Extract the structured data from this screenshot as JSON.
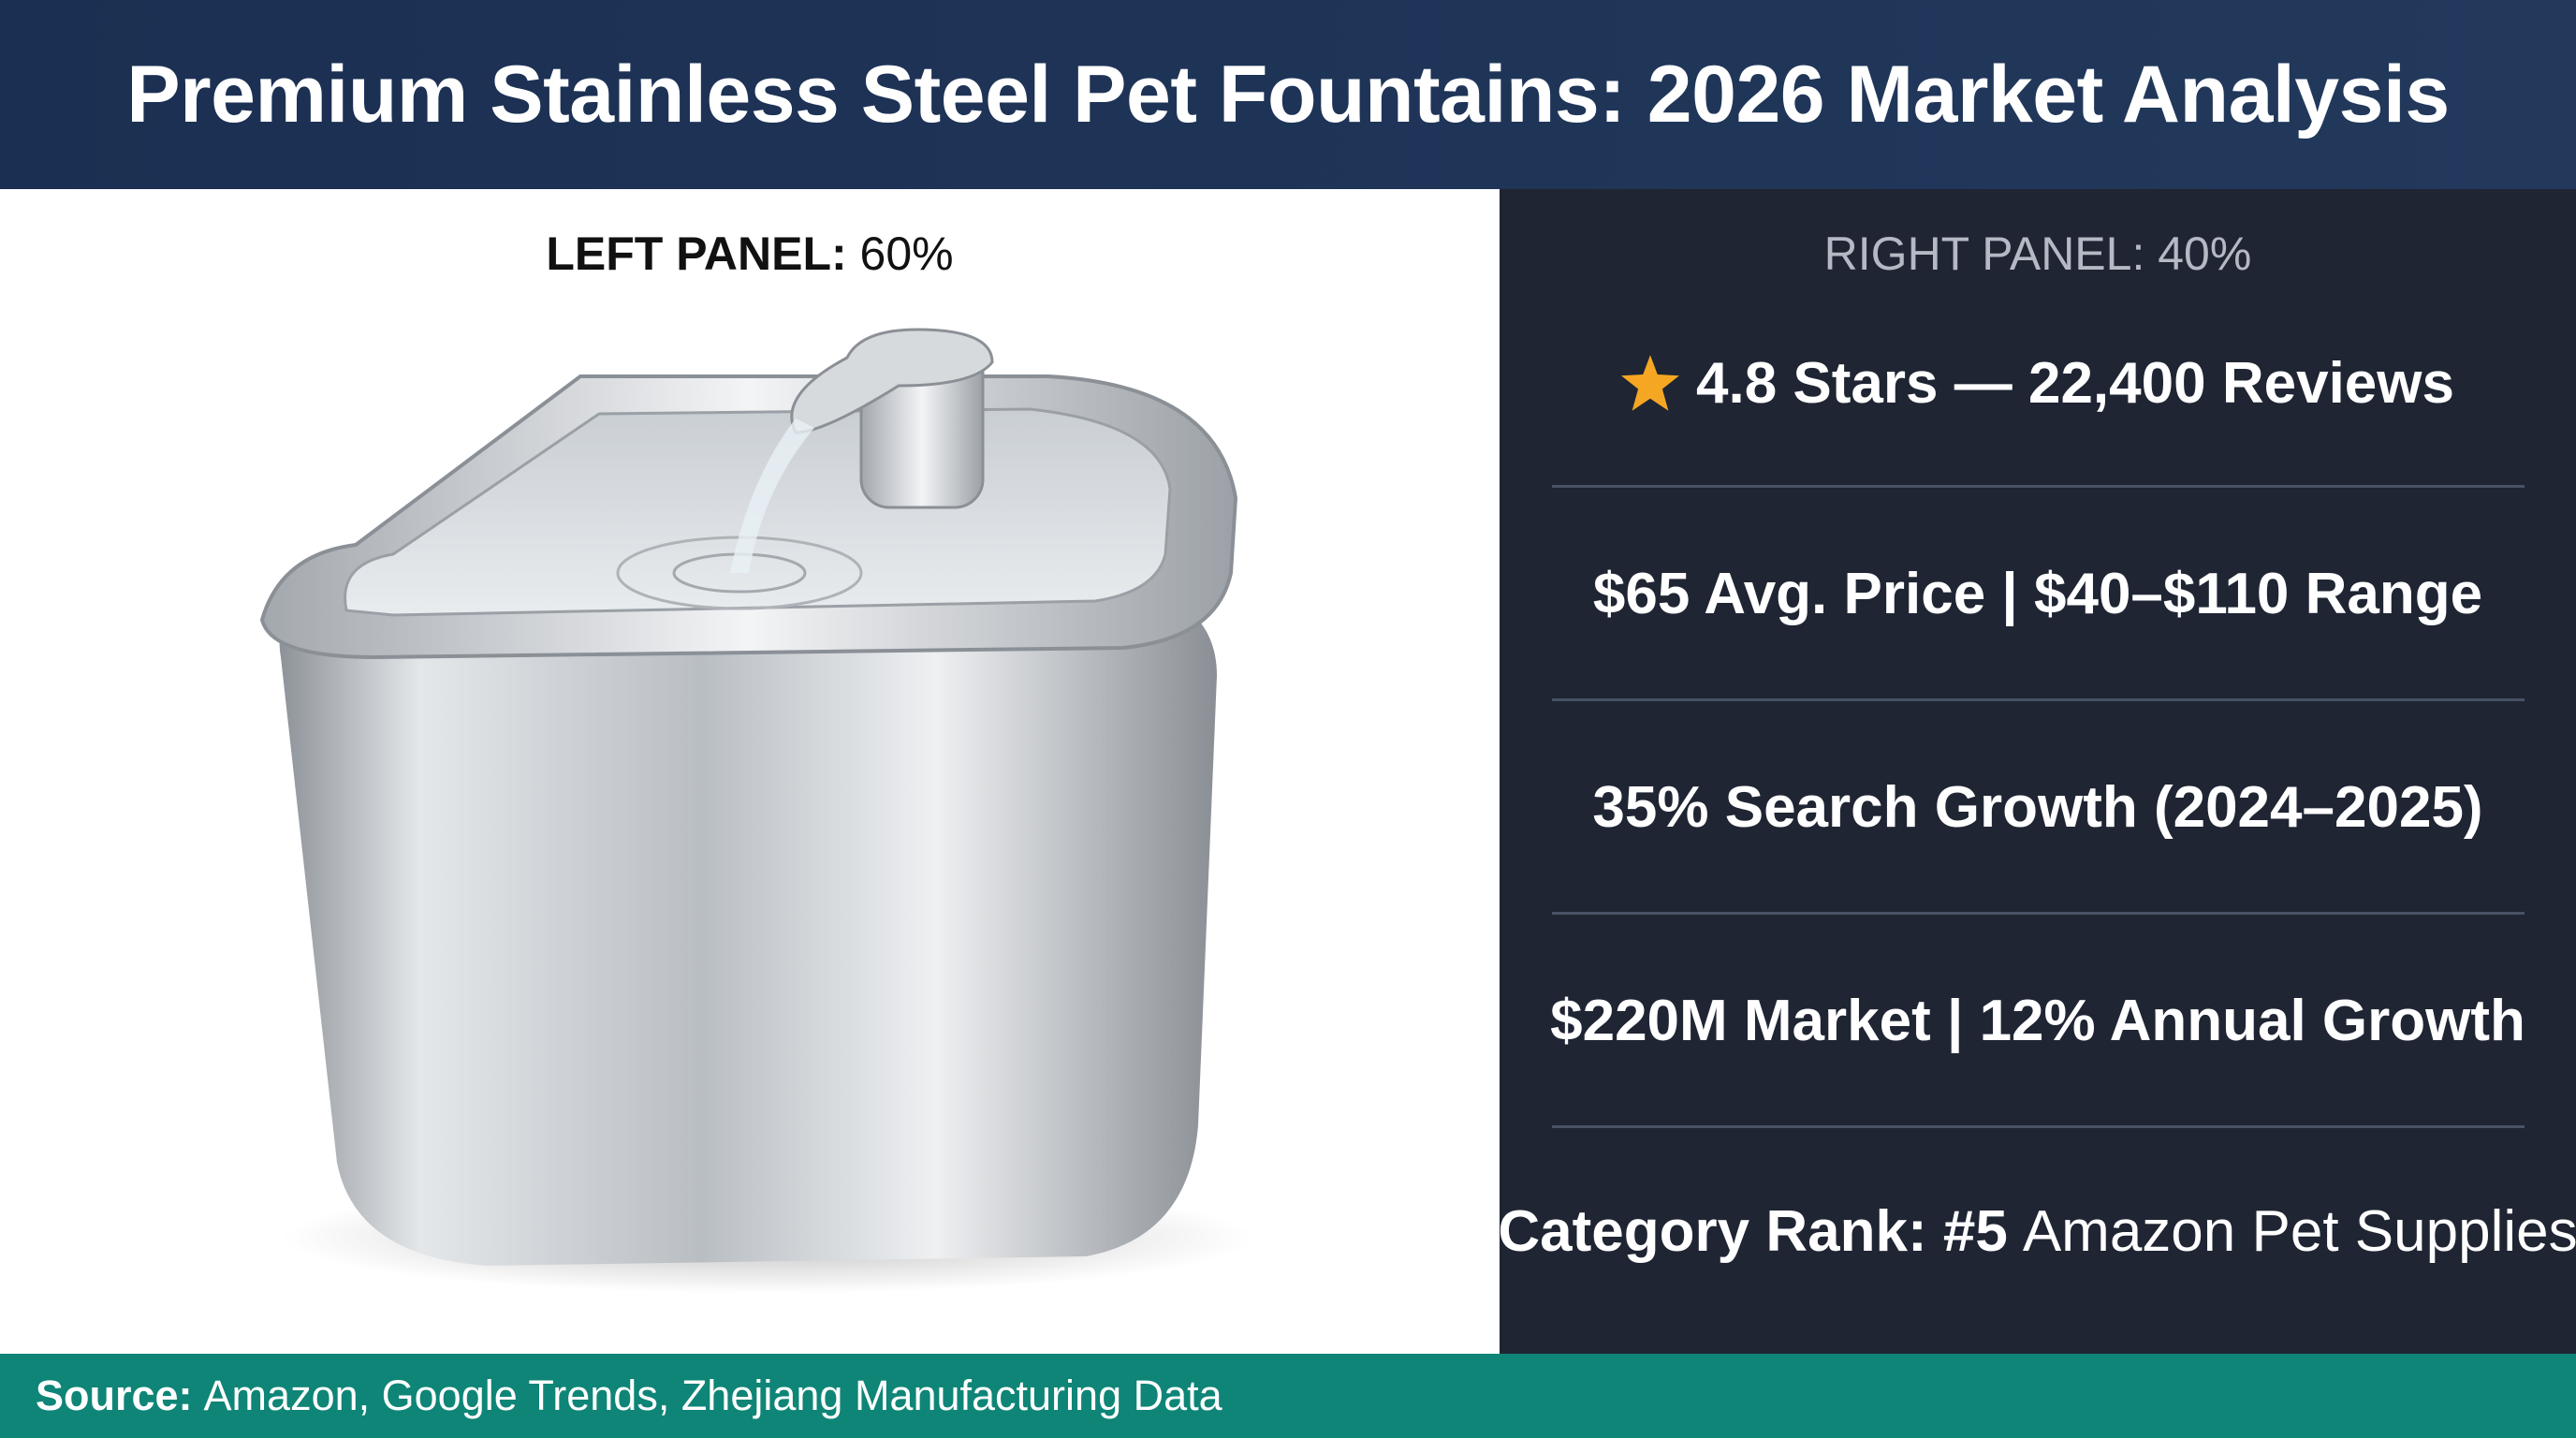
{
  "header": {
    "title": "Premium Stainless Steel Pet Fountains: 2026 Market Analysis"
  },
  "left_panel": {
    "label_bold": "LEFT PANEL:",
    "label_rest": "60%"
  },
  "right_panel": {
    "label": "RIGHT PANEL: 40%",
    "stats": [
      {
        "bold": "4.8 Stars — 22,400 Reviews"
      },
      {
        "bold": "$65 Avg. Price | $40–$110 Range"
      },
      {
        "bold": "35% Search Growth (2024–2025)"
      },
      {
        "bold": "$220M Market | 12% Annual Growth"
      },
      {
        "bold": "Category Rank: #5",
        "rest": "Amazon Pet Supplies"
      }
    ]
  },
  "footer": {
    "label": "Source:",
    "text": "Amazon, Google Trends, Zhejiang Manufacturing Data"
  }
}
